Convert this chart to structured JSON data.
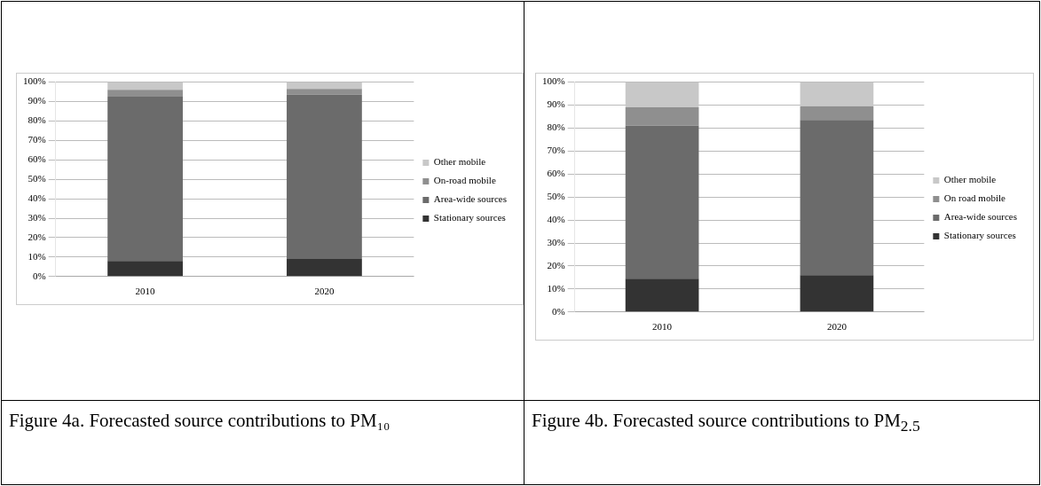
{
  "chart_data": [
    {
      "type": "bar",
      "title": "Figure 4a. Forecasted source contributions to PM₁₀",
      "categories": [
        "2010",
        "2020"
      ],
      "stacked": true,
      "legend": "right",
      "grid": "y",
      "series": [
        {
          "name": "Stationary sources",
          "color": "#333333",
          "values": [
            8,
            9
          ]
        },
        {
          "name": "Area-wide sources",
          "color": "#6b6b6b",
          "values": [
            84.5,
            84.5
          ]
        },
        {
          "name": "On-road mobile",
          "color": "#8f8f8f",
          "values": [
            3.5,
            3
          ]
        },
        {
          "name": "Other mobile",
          "color": "#c8c8c8",
          "values": [
            4,
            3.5
          ]
        }
      ],
      "ylim": [
        0,
        100
      ],
      "yticks": [
        {
          "value": 0,
          "label": "0%"
        },
        {
          "value": 10,
          "label": "10%"
        },
        {
          "value": 20,
          "label": "20%"
        },
        {
          "value": 30,
          "label": "30%"
        },
        {
          "value": 40,
          "label": "40%"
        },
        {
          "value": 50,
          "label": "50%"
        },
        {
          "value": 60,
          "label": "60%"
        },
        {
          "value": 70,
          "label": "70%"
        },
        {
          "value": 80,
          "label": "80%"
        },
        {
          "value": 90,
          "label": "90%"
        },
        {
          "value": 100,
          "label": "100%"
        }
      ]
    },
    {
      "type": "bar",
      "title": "Figure 4b. Forecasted source contributions to PM$_{2.5}$",
      "categories": [
        "2010",
        "2020"
      ],
      "stacked": true,
      "legend": "right",
      "grid": "y",
      "series": [
        {
          "name": "Stationary sources",
          "color": "#333333",
          "values": [
            14.5,
            16
          ]
        },
        {
          "name": "Area-wide sources",
          "color": "#6b6b6b",
          "values": [
            66.5,
            67.5
          ]
        },
        {
          "name": "On road mobile",
          "color": "#8f8f8f",
          "values": [
            8,
            6
          ]
        },
        {
          "name": "Other mobile",
          "color": "#c8c8c8",
          "values": [
            11,
            10.5
          ]
        }
      ],
      "ylim": [
        0,
        100
      ],
      "yticks": [
        {
          "value": 0,
          "label": "0%"
        },
        {
          "value": 10,
          "label": "10%"
        },
        {
          "value": 20,
          "label": "20%"
        },
        {
          "value": 30,
          "label": "30%"
        },
        {
          "value": 40,
          "label": "40%"
        },
        {
          "value": 50,
          "label": "50%"
        },
        {
          "value": 60,
          "label": "60%"
        },
        {
          "value": 70,
          "label": "70%"
        },
        {
          "value": 80,
          "label": "80%"
        },
        {
          "value": 90,
          "label": "90%"
        },
        {
          "value": 100,
          "label": "100%"
        }
      ]
    }
  ]
}
